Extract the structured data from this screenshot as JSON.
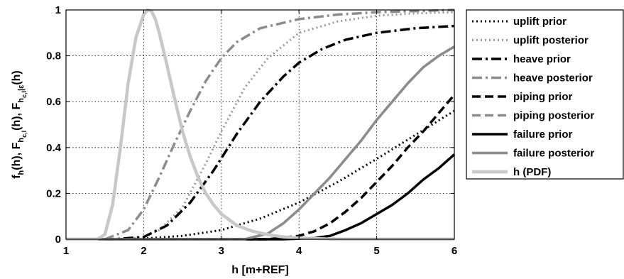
{
  "chart_data": {
    "type": "line",
    "title": "",
    "xlabel": "h [m+REF]",
    "ylabel_parts": {
      "f_main": "f",
      "f_sub": "h",
      "F1_main": "F",
      "F1_sub": "h",
      "F1_subsub": "c,l",
      "F2_main": "F",
      "F2_sub": "h",
      "F2_subsub": "c,l",
      "F2_cond": "|ε",
      "arg": "(h)",
      "comma": ", "
    },
    "xlim": [
      1,
      6
    ],
    "ylim": [
      0,
      1
    ],
    "xticks": [
      1,
      2,
      3,
      4,
      5,
      6
    ],
    "yticks": [
      0,
      0.2,
      0.4,
      0.6,
      0.8,
      1
    ],
    "ytick_labels": [
      "0",
      "0.2",
      "0.4",
      "0.6",
      "0.8",
      "1"
    ],
    "xtick_labels": [
      "1",
      "2",
      "3",
      "4",
      "5",
      "6"
    ],
    "grid": true,
    "legend_position": "outside-right",
    "series": [
      {
        "name": "uplift prior",
        "color": "#000000",
        "style": "dotted",
        "x": [
          1.0,
          1.5,
          2.0,
          2.5,
          3.0,
          3.5,
          4.0,
          4.5,
          5.0,
          5.5,
          6.0
        ],
        "y": [
          0.0,
          0.0,
          0.003,
          0.015,
          0.04,
          0.09,
          0.16,
          0.25,
          0.35,
          0.455,
          0.56
        ]
      },
      {
        "name": "uplift posterior",
        "color": "#9a9a9a",
        "style": "dotted",
        "x": [
          1.0,
          1.5,
          1.8,
          2.0,
          2.2,
          2.5,
          2.8,
          3.0,
          3.3,
          3.6,
          4.0,
          4.5,
          5.0,
          5.5,
          6.0
        ],
        "y": [
          0.0,
          0.0,
          0.002,
          0.01,
          0.04,
          0.14,
          0.33,
          0.47,
          0.66,
          0.79,
          0.9,
          0.95,
          0.975,
          0.985,
          0.99
        ]
      },
      {
        "name": "heave prior",
        "color": "#000000",
        "style": "dashdot",
        "x": [
          1.0,
          1.6,
          2.0,
          2.3,
          2.6,
          2.9,
          3.2,
          3.5,
          3.8,
          4.0,
          4.3,
          4.6,
          5.0,
          5.5,
          6.0
        ],
        "y": [
          0.0,
          0.0,
          0.01,
          0.06,
          0.16,
          0.3,
          0.46,
          0.6,
          0.71,
          0.77,
          0.83,
          0.87,
          0.9,
          0.92,
          0.93
        ]
      },
      {
        "name": "heave posterior",
        "color": "#8c8c8c",
        "style": "dashdot",
        "x": [
          1.0,
          1.5,
          1.8,
          2.0,
          2.2,
          2.4,
          2.6,
          2.8,
          3.0,
          3.2,
          3.5,
          4.0,
          4.5,
          5.0,
          5.5,
          6.0
        ],
        "y": [
          0.0,
          0.0,
          0.04,
          0.13,
          0.27,
          0.42,
          0.56,
          0.69,
          0.79,
          0.86,
          0.92,
          0.96,
          0.98,
          0.99,
          0.995,
          1.0
        ]
      },
      {
        "name": "piping prior",
        "color": "#000000",
        "style": "dashed",
        "x": [
          1.0,
          3.6,
          4.0,
          4.2,
          4.4,
          4.6,
          4.8,
          5.0,
          5.2,
          5.4,
          5.6,
          5.8,
          6.0
        ],
        "y": [
          0.0,
          0.0,
          0.015,
          0.035,
          0.07,
          0.12,
          0.18,
          0.25,
          0.32,
          0.4,
          0.47,
          0.55,
          0.63
        ]
      },
      {
        "name": "piping posterior",
        "color": "#8c8c8c",
        "style": "dashed",
        "x": [
          1.0,
          3.3,
          3.6,
          3.8,
          4.0,
          4.2,
          4.4,
          4.6,
          4.8,
          5.0,
          5.2,
          5.4,
          5.6,
          5.8,
          6.0
        ],
        "y": [
          0.0,
          0.0,
          0.025,
          0.07,
          0.13,
          0.2,
          0.27,
          0.35,
          0.43,
          0.52,
          0.6,
          0.68,
          0.75,
          0.8,
          0.84
        ]
      },
      {
        "name": "failure prior",
        "color": "#000000",
        "style": "solid",
        "x": [
          1.0,
          3.8,
          4.2,
          4.4,
          4.6,
          4.8,
          5.0,
          5.2,
          5.4,
          5.6,
          5.8,
          6.0
        ],
        "y": [
          0.0,
          0.0,
          0.005,
          0.015,
          0.04,
          0.07,
          0.11,
          0.15,
          0.2,
          0.26,
          0.31,
          0.37
        ]
      },
      {
        "name": "failure posterior",
        "color": "#8c8c8c",
        "style": "solid",
        "x": [
          1.0,
          3.3,
          3.6,
          3.8,
          4.0,
          4.2,
          4.4,
          4.6,
          4.8,
          5.0,
          5.2,
          5.4,
          5.6,
          5.8,
          6.0
        ],
        "y": [
          0.0,
          0.0,
          0.025,
          0.07,
          0.13,
          0.2,
          0.27,
          0.35,
          0.43,
          0.52,
          0.6,
          0.68,
          0.75,
          0.8,
          0.84
        ]
      },
      {
        "name": "h (PDF)",
        "color": "#c8c8c8",
        "style": "solid-thick",
        "x": [
          1.0,
          1.4,
          1.5,
          1.6,
          1.7,
          1.8,
          1.9,
          2.0,
          2.05,
          2.1,
          2.15,
          2.2,
          2.3,
          2.4,
          2.5,
          2.6,
          2.7,
          2.8,
          2.9,
          3.0,
          3.2,
          3.4,
          3.6,
          3.8,
          4.0,
          4.5,
          6.0
        ],
        "y": [
          0.0,
          0.0,
          0.02,
          0.15,
          0.4,
          0.68,
          0.88,
          0.98,
          1.0,
          0.995,
          0.96,
          0.9,
          0.76,
          0.61,
          0.47,
          0.36,
          0.27,
          0.2,
          0.15,
          0.11,
          0.06,
          0.035,
          0.02,
          0.01,
          0.005,
          0.0,
          0.0
        ]
      }
    ]
  }
}
